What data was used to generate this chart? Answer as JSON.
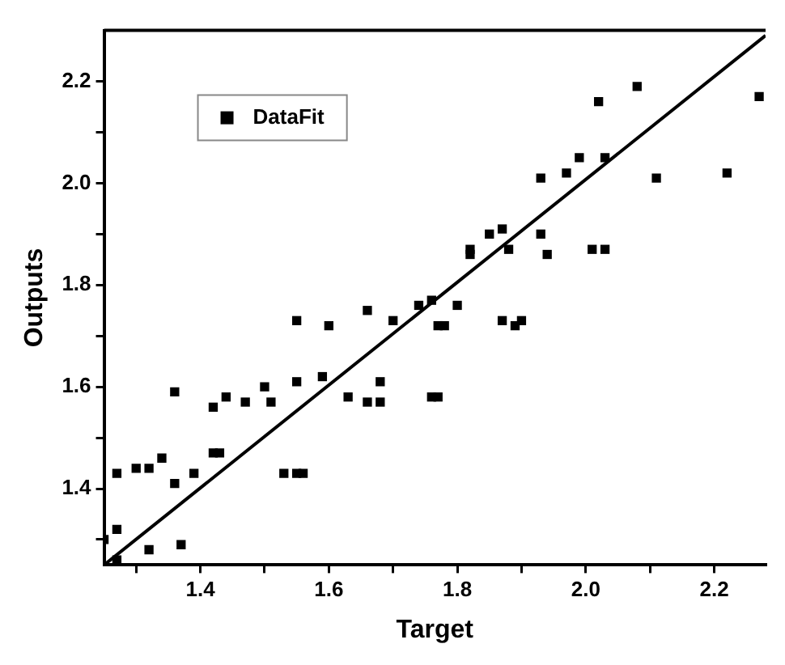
{
  "chart_data": {
    "type": "scatter",
    "xlabel": "Target",
    "ylabel": "Outputs",
    "xlim": [
      1.25,
      2.28
    ],
    "ylim": [
      1.25,
      2.3
    ],
    "xticks": [
      {
        "value": 1.3,
        "label": null
      },
      1.4,
      {
        "value": 1.5,
        "label": null
      },
      1.6,
      {
        "value": 1.7,
        "label": null
      },
      1.8,
      {
        "value": 1.9,
        "label": null
      },
      {
        "value": 2,
        "label": "2.0"
      },
      {
        "value": 2.1,
        "label": null
      },
      2.2
    ],
    "yticks": [
      {
        "value": 1.3,
        "label": null
      },
      1.4,
      {
        "value": 1.5,
        "label": null
      },
      1.6,
      {
        "value": 1.7,
        "label": null
      },
      1.8,
      {
        "value": 1.9,
        "label": null
      },
      {
        "value": 2,
        "label": "2.0"
      },
      {
        "value": 2.1,
        "label": null
      },
      2.2
    ],
    "grid": false,
    "legend": "top left",
    "series": [
      {
        "name": "DataFit",
        "type": "scatter",
        "marker": "square",
        "color": "#000000",
        "x": [
          1.25,
          1.27,
          1.27,
          1.27,
          1.3,
          1.32,
          1.32,
          1.34,
          1.36,
          1.36,
          1.37,
          1.39,
          1.42,
          1.42,
          1.43,
          1.44,
          1.47,
          1.5,
          1.51,
          1.53,
          1.55,
          1.56,
          1.55,
          1.55,
          1.59,
          1.6,
          1.63,
          1.66,
          1.66,
          1.68,
          1.68,
          1.7,
          1.74,
          1.76,
          1.76,
          1.77,
          1.77,
          1.78,
          1.8,
          1.82,
          1.82,
          1.85,
          1.87,
          1.87,
          1.88,
          1.89,
          1.9,
          1.93,
          1.94,
          1.93,
          1.97,
          1.99,
          2.01,
          2.03,
          2.02,
          2.03,
          2.08,
          2.11,
          2.22,
          2.27
        ],
        "values": [
          1.3,
          1.26,
          1.32,
          1.43,
          1.44,
          1.44,
          1.28,
          1.46,
          1.41,
          1.59,
          1.29,
          1.43,
          1.47,
          1.56,
          1.47,
          1.58,
          1.57,
          1.6,
          1.57,
          1.43,
          1.43,
          1.43,
          1.61,
          1.73,
          1.62,
          1.72,
          1.58,
          1.57,
          1.75,
          1.61,
          1.57,
          1.73,
          1.76,
          1.77,
          1.58,
          1.58,
          1.72,
          1.72,
          1.76,
          1.87,
          1.86,
          1.9,
          1.91,
          1.73,
          1.87,
          1.72,
          1.73,
          1.9,
          1.86,
          2.01,
          2.02,
          2.05,
          1.87,
          1.87,
          2.16,
          2.05,
          2.19,
          2.01,
          2.02,
          2.17
        ]
      },
      {
        "type": "line",
        "marker": "none",
        "line_style": "solid",
        "color": "#000000",
        "x": [
          1.25,
          2.28
        ],
        "values": [
          1.25,
          2.29
        ]
      }
    ]
  }
}
